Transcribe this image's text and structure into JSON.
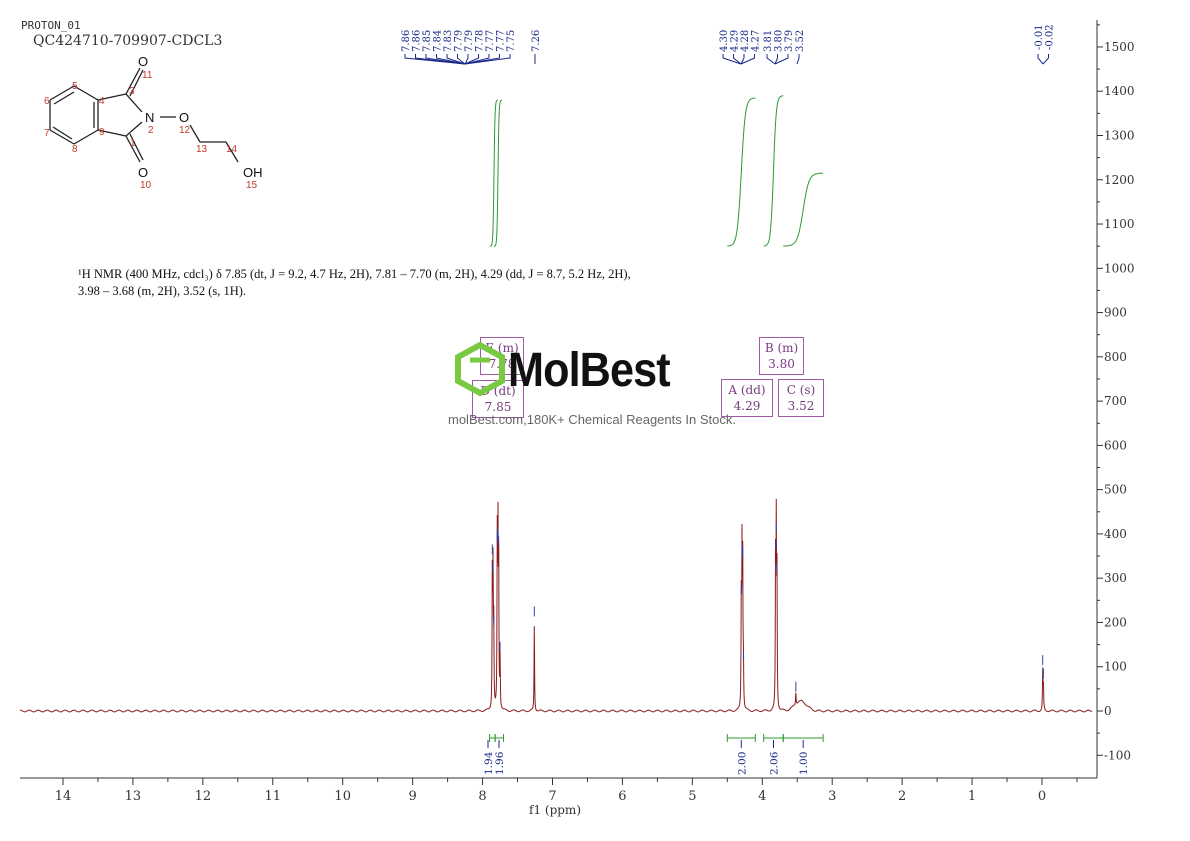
{
  "header": {
    "experiment": "PROTON_01",
    "sample": "QC424710-709907-CDCL3"
  },
  "description": "¹H NMR (400 MHz, cdcl₃) δ 7.85 (dt, J = 9.2, 4.7 Hz, 2H), 7.81 – 7.70 (m, 2H), 4.29 (dd, J = 8.7, 5.2 Hz, 2H), 3.98 – 3.68 (m, 2H), 3.52 (s, 1H).",
  "structure": {
    "atom_labels": [
      "O",
      "11",
      "3",
      "5",
      "4",
      "6",
      "N",
      "2",
      "O",
      "12",
      "7",
      "9",
      "1",
      "8",
      "13",
      "14",
      "O",
      "10",
      "OH",
      "15"
    ]
  },
  "watermark": {
    "logo": "MolBest",
    "text": "molBest.com,180K+ Chemical Reagents In Stock."
  },
  "multiplets": [
    {
      "label": "E (m)",
      "shift": "7.78"
    },
    {
      "label": "D (dt)",
      "shift": "7.85"
    },
    {
      "label": "B (m)",
      "shift": "3.80"
    },
    {
      "label": "A (dd)",
      "shift": "4.29"
    },
    {
      "label": "C (s)",
      "shift": "3.52"
    }
  ],
  "colors": {
    "spectrum": "#8b1a1a",
    "integral": "#2e9a2e",
    "peak_label": "#1a2a8a",
    "multiplet_box": "#a05aa6",
    "logo_green": "#7ac943"
  },
  "chart_data": {
    "type": "line",
    "xlabel": "f1 (ppm)",
    "ylabel": "",
    "xlim": [
      14.6,
      -0.7
    ],
    "ylim": [
      -150,
      1560
    ],
    "x_ticks": [
      14,
      13,
      12,
      11,
      10,
      9,
      8,
      7,
      6,
      5,
      4,
      3,
      2,
      1,
      0
    ],
    "y_ticks": [
      1500,
      1400,
      1300,
      1200,
      1100,
      1000,
      900,
      800,
      700,
      600,
      500,
      400,
      300,
      200,
      100,
      0,
      -100
    ],
    "peak_picks": [
      {
        "group": [
          "7.86",
          "7.86",
          "7.85",
          "7.84",
          "7.83",
          "7.79",
          "7.79",
          "7.78",
          "7.77",
          "7.77",
          "7.75"
        ]
      },
      {
        "group": [
          "7.26"
        ]
      },
      {
        "group": [
          "4.30",
          "4.29",
          "4.28",
          "4.27"
        ]
      },
      {
        "group": [
          "3.81",
          "3.80",
          "3.79"
        ]
      },
      {
        "group": [
          "3.52"
        ]
      },
      {
        "group": [
          "-0.01",
          "-0.02"
        ]
      }
    ],
    "peaks": [
      {
        "ppm": 7.86,
        "height": 340
      },
      {
        "ppm": 7.85,
        "height": 300
      },
      {
        "ppm": 7.84,
        "height": 180
      },
      {
        "ppm": 7.79,
        "height": 370
      },
      {
        "ppm": 7.78,
        "height": 380
      },
      {
        "ppm": 7.77,
        "height": 360
      },
      {
        "ppm": 7.75,
        "height": 120
      },
      {
        "ppm": 7.26,
        "height": 200
      },
      {
        "ppm": 4.3,
        "height": 250
      },
      {
        "ppm": 4.29,
        "height": 340
      },
      {
        "ppm": 4.28,
        "height": 330
      },
      {
        "ppm": 4.27,
        "height": 100
      },
      {
        "ppm": 3.81,
        "height": 350
      },
      {
        "ppm": 3.8,
        "height": 390
      },
      {
        "ppm": 3.79,
        "height": 300
      },
      {
        "ppm": 3.52,
        "height": 30
      },
      {
        "ppm": -0.01,
        "height": 90
      },
      {
        "ppm": -0.02,
        "height": 60
      }
    ],
    "integrals": [
      {
        "from": 7.9,
        "to": 7.82,
        "value": "1.94"
      },
      {
        "from": 7.82,
        "to": 7.7,
        "value": "1.96"
      },
      {
        "from": 4.5,
        "to": 4.1,
        "value": "2.00"
      },
      {
        "from": 3.98,
        "to": 3.7,
        "value": "2.06"
      },
      {
        "from": 3.7,
        "to": 3.13,
        "value": "1.00"
      }
    ]
  }
}
